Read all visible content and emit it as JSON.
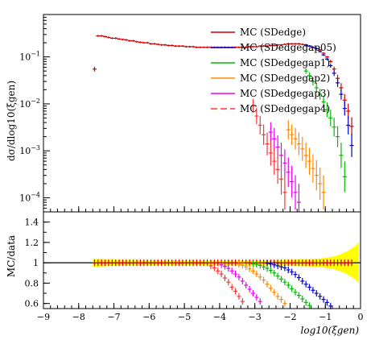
{
  "chart_data": [
    {
      "type": "scatter",
      "panel": "main",
      "ylabel": "dσ/dlog10(ξgen)",
      "xlabel": "",
      "xlim": [
        -9,
        0
      ],
      "yscale": "log",
      "ylim": [
        5e-05,
        0.8
      ],
      "y_ticks": [
        {
          "v": 0.0001,
          "base": "10",
          "exp": "−4"
        },
        {
          "v": 0.001,
          "base": "10",
          "exp": "−3"
        },
        {
          "v": 0.01,
          "base": "10",
          "exp": "−2"
        },
        {
          "v": 0.1,
          "base": "10",
          "exp": "−1"
        }
      ],
      "legend_position": "top-right",
      "series": [
        {
          "name": "MC (SDedge)",
          "color": "#cc0000",
          "style": "solid",
          "x": [
            -7.55,
            -7.45,
            -7.35,
            -7.25,
            -7.15,
            -7.05,
            -6.95,
            -6.85,
            -6.75,
            -6.65,
            -6.55,
            -6.45,
            -6.35,
            -6.25,
            -6.15,
            -6.05,
            -5.95,
            -5.85,
            -5.75,
            -5.65,
            -5.55,
            -5.45,
            -5.35,
            -5.25,
            -5.15,
            -5.05,
            -4.95,
            -4.85,
            -4.75,
            -4.65,
            -4.55,
            -4.45,
            -4.35,
            -4.25,
            -4.15,
            -4.05,
            -3.95,
            -3.85,
            -3.75,
            -3.65,
            -3.55,
            -3.45,
            -3.35,
            -3.25,
            -3.15,
            -3.05,
            -2.95,
            -2.85,
            -2.75,
            -2.65,
            -2.55,
            -2.45,
            -2.35,
            -2.25,
            -2.15,
            -2.05,
            -1.95,
            -1.85,
            -1.75,
            -1.65,
            -1.55,
            -1.45,
            -1.35,
            -1.25,
            -1.15,
            -1.05,
            -0.95,
            -0.85,
            -0.75,
            -0.65,
            -0.55,
            -0.45,
            -0.35,
            -0.25
          ],
          "y": [
            0.055,
            0.28,
            0.28,
            0.27,
            0.26,
            0.25,
            0.25,
            0.24,
            0.235,
            0.23,
            0.22,
            0.22,
            0.21,
            0.205,
            0.2,
            0.2,
            0.19,
            0.19,
            0.185,
            0.18,
            0.18,
            0.175,
            0.175,
            0.17,
            0.17,
            0.17,
            0.165,
            0.165,
            0.165,
            0.16,
            0.16,
            0.16,
            0.16,
            0.16,
            0.16,
            0.16,
            0.16,
            0.16,
            0.16,
            0.16,
            0.16,
            0.16,
            0.16,
            0.16,
            0.165,
            0.165,
            0.165,
            0.17,
            0.17,
            0.17,
            0.175,
            0.175,
            0.18,
            0.18,
            0.185,
            0.19,
            0.19,
            0.19,
            0.19,
            0.185,
            0.18,
            0.17,
            0.16,
            0.15,
            0.14,
            0.12,
            0.1,
            0.08,
            0.055,
            0.035,
            0.022,
            0.012,
            0.007,
            0.0033
          ]
        },
        {
          "name": "MC (SDedgegap05)",
          "color": "#0000cc",
          "style": "solid",
          "x": [
            -1.55,
            -1.45,
            -1.35,
            -1.25,
            -1.15,
            -1.05,
            -0.95,
            -0.85,
            -0.75,
            -0.65,
            -0.55,
            -0.45,
            -0.35,
            -0.25
          ],
          "y": [
            0.18,
            0.17,
            0.16,
            0.15,
            0.13,
            0.11,
            0.09,
            0.065,
            0.045,
            0.028,
            0.016,
            0.008,
            0.0035,
            0.0013
          ]
        },
        {
          "name": "MC (SDedgegap1)",
          "color": "#00bb00",
          "style": "solid",
          "x": [
            -1.55,
            -1.45,
            -1.35,
            -1.25,
            -1.15,
            -1.05,
            -0.95,
            -0.85,
            -0.75,
            -0.65,
            -0.55,
            -0.45
          ],
          "y": [
            0.05,
            0.04,
            0.03,
            0.022,
            0.016,
            0.011,
            0.0075,
            0.005,
            0.0032,
            0.002,
            0.0008,
            0.00028
          ]
        },
        {
          "name": "MC (SDedgegap2)",
          "color": "#ff8800",
          "style": "solid",
          "x": [
            -2.05,
            -1.95,
            -1.85,
            -1.75,
            -1.65,
            -1.55,
            -1.45,
            -1.35,
            -1.25,
            -1.15,
            -1.05
          ],
          "y": [
            0.0028,
            0.0022,
            0.0018,
            0.0014,
            0.0011,
            0.0008,
            0.0006,
            0.00042,
            0.0003,
            0.0002,
            0.00013
          ]
        },
        {
          "name": "MC (SDedgegap3)",
          "color": "#ee00ee",
          "style": "solid",
          "x": [
            -2.55,
            -2.45,
            -2.35,
            -2.25,
            -2.15,
            -2.05,
            -1.95,
            -1.85,
            -1.75
          ],
          "y": [
            0.0025,
            0.0018,
            0.0012,
            0.0008,
            0.00055,
            0.00035,
            0.00022,
            0.00013,
            8e-05
          ]
        },
        {
          "name": "MC (SDedgegap4)",
          "color": "#ff3333",
          "style": "dashed",
          "x": [
            -3.05,
            -2.95,
            -2.85,
            -2.75,
            -2.65,
            -2.55,
            -2.45,
            -2.35,
            -2.25,
            -2.15
          ],
          "y": [
            0.009,
            0.0055,
            0.0035,
            0.0022,
            0.0014,
            0.0009,
            0.0006,
            0.0004,
            0.00025,
            0.00013
          ]
        }
      ]
    },
    {
      "type": "scatter",
      "panel": "ratio",
      "ylabel": "MC/data",
      "xlabel": "log10(ξgen)",
      "xlim": [
        -9,
        0
      ],
      "ylim": [
        0.55,
        1.5
      ],
      "y_ticks": [
        0.6,
        0.8,
        1,
        1.2,
        1.4
      ],
      "x_ticks": [
        -9,
        -8,
        -7,
        -6,
        -5,
        -4,
        -3,
        -2,
        -1,
        0
      ],
      "reference_line": 1,
      "uncertainty_band_color": "#ffff00",
      "band_x": [
        -7.6,
        -7.0,
        -6.0,
        -5.0,
        -4.0,
        -3.0,
        -2.5,
        -2.0,
        -1.5,
        -1.2,
        -1.0,
        -0.8,
        -0.6,
        -0.4,
        -0.2,
        -0.05
      ],
      "band_halfwidth": [
        0.04,
        0.03,
        0.025,
        0.025,
        0.025,
        0.025,
        0.025,
        0.03,
        0.035,
        0.04,
        0.05,
        0.06,
        0.08,
        0.11,
        0.15,
        0.2
      ],
      "series": [
        {
          "name": "MC (SDedge)",
          "color": "#cc0000",
          "x": [
            -7.55,
            -7.45,
            -7.35,
            -7.25,
            -7.15,
            -7.05,
            -6.95,
            -6.85,
            -6.75,
            -6.65,
            -6.55,
            -6.45,
            -6.35,
            -6.25,
            -6.15,
            -6.05,
            -5.95,
            -5.85,
            -5.75,
            -5.65,
            -5.55,
            -5.45,
            -5.35,
            -5.25,
            -5.15,
            -5.05,
            -4.95,
            -4.85,
            -4.75,
            -4.65,
            -4.55,
            -4.45,
            -4.35,
            -4.25,
            -4.15,
            -4.05,
            -3.95,
            -3.85,
            -3.75,
            -3.65,
            -3.55,
            -3.45,
            -3.35,
            -3.25,
            -3.15,
            -3.05,
            -2.95,
            -2.85,
            -2.75,
            -2.65,
            -2.55,
            -2.45,
            -2.35,
            -2.25,
            -2.15,
            -2.05,
            -1.95,
            -1.85,
            -1.75,
            -1.65,
            -1.55,
            -1.45,
            -1.35,
            -1.25,
            -1.15,
            -1.05,
            -0.95,
            -0.85,
            -0.75,
            -0.65,
            -0.55,
            -0.45,
            -0.35,
            -0.25
          ],
          "y": [
            1,
            1,
            1,
            1,
            1,
            1,
            1,
            1,
            1,
            1,
            1,
            1,
            1,
            1,
            1,
            1,
            1,
            1,
            1,
            1,
            1,
            1,
            1,
            1,
            1,
            1,
            1,
            1,
            1,
            1,
            1,
            1,
            1,
            1,
            1,
            1,
            1,
            1,
            1,
            1,
            1,
            1,
            1,
            1,
            1,
            1,
            1,
            1,
            1,
            1,
            1,
            1,
            1,
            1,
            1,
            1,
            1,
            1,
            1,
            1,
            1,
            1,
            1,
            1,
            1,
            1,
            1,
            1,
            1,
            1,
            1,
            1,
            1,
            1
          ]
        },
        {
          "name": "MC (SDedgegap05)",
          "color": "#0000cc",
          "x": [
            -2.65,
            -2.55,
            -2.45,
            -2.35,
            -2.25,
            -2.15,
            -2.05,
            -1.95,
            -1.85,
            -1.75,
            -1.65,
            -1.55,
            -1.45,
            -1.35,
            -1.25,
            -1.15,
            -1.05,
            -0.95,
            -0.85
          ],
          "y": [
            0.995,
            0.99,
            0.98,
            0.97,
            0.96,
            0.95,
            0.93,
            0.91,
            0.885,
            0.855,
            0.82,
            0.79,
            0.76,
            0.73,
            0.7,
            0.67,
            0.64,
            0.61,
            0.575
          ]
        },
        {
          "name": "MC (SDedgegap1)",
          "color": "#00bb00",
          "x": [
            -3.05,
            -2.95,
            -2.85,
            -2.75,
            -2.65,
            -2.55,
            -2.45,
            -2.35,
            -2.25,
            -2.15,
            -2.05,
            -1.95,
            -1.85,
            -1.75,
            -1.65,
            -1.55,
            -1.45
          ],
          "y": [
            0.99,
            0.985,
            0.975,
            0.96,
            0.945,
            0.925,
            0.9,
            0.87,
            0.84,
            0.81,
            0.78,
            0.745,
            0.71,
            0.68,
            0.645,
            0.61,
            0.58
          ]
        },
        {
          "name": "MC (SDedgegap2)",
          "color": "#ff8800",
          "x": [
            -3.45,
            -3.35,
            -3.25,
            -3.15,
            -3.05,
            -2.95,
            -2.85,
            -2.75,
            -2.65,
            -2.55,
            -2.45,
            -2.35,
            -2.25,
            -2.15
          ],
          "y": [
            0.985,
            0.975,
            0.96,
            0.94,
            0.92,
            0.89,
            0.86,
            0.83,
            0.79,
            0.75,
            0.71,
            0.67,
            0.64,
            0.6
          ]
        },
        {
          "name": "MC (SDedgegap3)",
          "color": "#ee00ee",
          "x": [
            -3.95,
            -3.85,
            -3.75,
            -3.65,
            -3.55,
            -3.45,
            -3.35,
            -3.25,
            -3.15,
            -3.05,
            -2.95,
            -2.85
          ],
          "y": [
            0.98,
            0.965,
            0.945,
            0.92,
            0.89,
            0.86,
            0.82,
            0.78,
            0.74,
            0.7,
            0.66,
            0.62
          ]
        },
        {
          "name": "MC (SDedgegap4)",
          "color": "#ff3333",
          "x": [
            -4.25,
            -4.15,
            -4.05,
            -3.95,
            -3.85,
            -3.75,
            -3.65,
            -3.55,
            -3.45,
            -3.35
          ],
          "y": [
            0.97,
            0.95,
            0.92,
            0.89,
            0.85,
            0.81,
            0.76,
            0.72,
            0.67,
            0.62
          ]
        }
      ]
    }
  ]
}
